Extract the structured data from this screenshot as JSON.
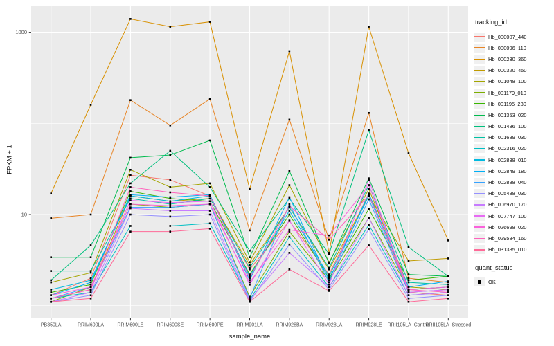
{
  "chart_data": {
    "type": "line",
    "title": "",
    "xlabel": "sample_name",
    "ylabel": "FPKM + 1",
    "scale": "log10",
    "ylim": [
      1,
      2000
    ],
    "grid": true,
    "legend_position": "right",
    "yticks": [
      {
        "value": 10,
        "label": "10"
      },
      {
        "value": 1000,
        "label": "1000"
      }
    ],
    "grid_major_values": [
      10,
      1000
    ],
    "grid_minor_values": [
      1,
      100
    ],
    "point_color": "#000000",
    "categories": [
      "PB350LA",
      "RRIM600LA",
      "RRIM600LE",
      "RRIM600SE",
      "RRIM600PE",
      "RRIM901LA",
      "RRIM928BA",
      "RRIM928LA",
      "RRIM928LE",
      "RRII105LA_Control",
      "RRII105LA_Stressed"
    ],
    "series": [
      {
        "name": "Hb_000007_440",
        "color": "#F8766D",
        "values": [
          1.3,
          2.0,
          27,
          24,
          16,
          2.5,
          8.5,
          2.2,
          17,
          1.4,
          1.3
        ]
      },
      {
        "name": "Hb_000096_110",
        "color": "#E88526",
        "values": [
          9.1,
          10,
          180,
          95,
          185,
          6.7,
          110,
          5.3,
          130,
          2.0,
          1.8
        ]
      },
      {
        "name": "Hb_000230_360",
        "color": "#D89000",
        "values": [
          17,
          160,
          1400,
          1150,
          1300,
          19,
          620,
          3.8,
          1150,
          47,
          5.2
        ]
      },
      {
        "name": "Hb_000320_450",
        "color": "#C09B00",
        "values": [
          1.2,
          1.5,
          16,
          14,
          15,
          2.8,
          12,
          2.5,
          16,
          3.1,
          3.3
        ]
      },
      {
        "name": "Hb_001048_100",
        "color": "#A3A500",
        "values": [
          1.8,
          2.3,
          31,
          20,
          22,
          3.0,
          21,
          3.0,
          19,
          1.6,
          1.5
        ]
      },
      {
        "name": "Hb_001179_010",
        "color": "#7CAE00",
        "values": [
          1.1,
          1.6,
          13,
          12,
          13,
          1.25,
          6.5,
          1.9,
          9.2,
          1.5,
          1.6
        ]
      },
      {
        "name": "Hb_001195_230",
        "color": "#39B600",
        "values": [
          1.4,
          1.7,
          18,
          15,
          14,
          2.2,
          10,
          2.0,
          11.5,
          1.9,
          2.1
        ]
      },
      {
        "name": "Hb_001353_020",
        "color": "#00BB4E",
        "values": [
          3.4,
          3.4,
          42,
          45,
          65,
          3.4,
          30,
          2.9,
          25,
          2.2,
          2.1
        ]
      },
      {
        "name": "Hb_001486_100",
        "color": "#00BF7D",
        "values": [
          1.9,
          4.6,
          22,
          50,
          20,
          4.0,
          15,
          3.7,
          84,
          4.4,
          2.1
        ]
      },
      {
        "name": "Hb_001689_030",
        "color": "#00C1A3",
        "values": [
          2.4,
          2.4,
          15,
          13,
          15,
          2.6,
          12,
          2.6,
          21,
          1.8,
          1.7
        ]
      },
      {
        "name": "Hb_002316_020",
        "color": "#00BFC4",
        "values": [
          1.2,
          1.4,
          7.5,
          7.5,
          8.0,
          1.15,
          5.7,
          1.6,
          7.7,
          1.3,
          1.4
        ]
      },
      {
        "name": "Hb_002838_010",
        "color": "#00BAE0",
        "values": [
          1.5,
          1.9,
          16,
          14,
          16,
          2.1,
          11,
          2.1,
          16,
          1.5,
          1.6
        ]
      },
      {
        "name": "Hb_002849_180",
        "color": "#00B0F6",
        "values": [
          1.3,
          1.8,
          16.5,
          15.5,
          16.5,
          1.9,
          15.5,
          1.9,
          17,
          1.6,
          1.85
        ]
      },
      {
        "name": "Hb_002888_040",
        "color": "#35A2FF",
        "values": [
          1.2,
          1.6,
          12,
          12,
          13,
          1.2,
          13,
          1.8,
          14.7,
          1.4,
          1.5
        ]
      },
      {
        "name": "Hb_005488_030",
        "color": "#9590FF",
        "values": [
          1.1,
          1.3,
          10,
          9.5,
          10,
          1.1,
          4.7,
          1.5,
          6.9,
          1.2,
          1.3
        ]
      },
      {
        "name": "Hb_006970_170",
        "color": "#C77CFF",
        "values": [
          1.1,
          1.4,
          11.7,
          11,
          11,
          1.15,
          3.8,
          1.6,
          9.2,
          1.3,
          1.4
        ]
      },
      {
        "name": "Hb_007747_100",
        "color": "#E76BF3",
        "values": [
          1.2,
          1.5,
          14.3,
          13.5,
          14,
          1.7,
          8.6,
          1.7,
          24,
          1.4,
          1.5
        ]
      },
      {
        "name": "Hb_026698_020",
        "color": "#FA62DB",
        "values": [
          1.3,
          1.6,
          13,
          12.5,
          13,
          1.8,
          6.8,
          5.9,
          21,
          1.5,
          1.6
        ]
      },
      {
        "name": "Hb_029584_160",
        "color": "#FF62BC",
        "values": [
          1.2,
          1.5,
          20,
          17.5,
          16,
          2.0,
          12.4,
          5.3,
          16.3,
          1.5,
          1.4
        ]
      },
      {
        "name": "Hb_031385_010",
        "color": "#FF6A98",
        "values": [
          1.1,
          1.2,
          6.5,
          6.5,
          7.0,
          1.1,
          2.5,
          1.45,
          4.6,
          1.1,
          1.2
        ]
      }
    ]
  },
  "legend": {
    "tracking_title": "tracking_id",
    "quant_title": "quant_status",
    "quant_items": [
      {
        "label": "OK"
      }
    ]
  },
  "axes": {
    "y_title": "FPKM + 1",
    "x_title": "sample_name"
  },
  "colors": {
    "panel_bg": "#EBEBEB",
    "grid": "#FFFFFF",
    "tick": "#333333",
    "tick_label": "#4D4D4D",
    "legend_key_bg": "#F0F0F0"
  }
}
